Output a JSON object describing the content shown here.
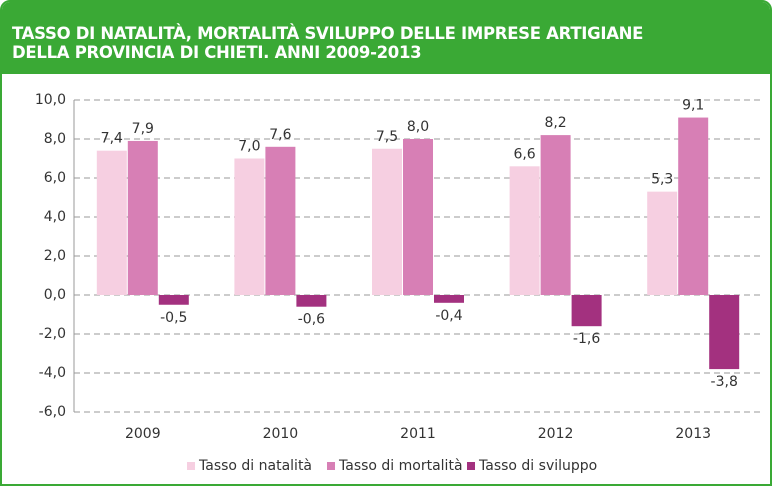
{
  "chart_data": {
    "type": "bar",
    "title": [
      "TASSO DI NATALITÀ, MORTALITÀ SVILUPPO DELLE IMPRESE ARTIGIANE",
      "DELLA PROVINCIA DI CHIETI. ANNI 2009-2013"
    ],
    "categories": [
      "2009",
      "2010",
      "2011",
      "2012",
      "2013"
    ],
    "series": [
      {
        "name": "Tasso di natalità",
        "color": "#f6cfe1",
        "values": [
          7.4,
          7.0,
          7.5,
          6.6,
          5.3
        ],
        "value_labels": [
          "7,4",
          "7,0",
          "7,5",
          "6,6",
          "5,3"
        ]
      },
      {
        "name": "Tasso di mortalità",
        "color": "#d77fb5",
        "values": [
          7.9,
          7.6,
          8.0,
          8.2,
          9.1
        ],
        "value_labels": [
          "7,9",
          "7,6",
          "8,0",
          "8,2",
          "9,1"
        ]
      },
      {
        "name": "Tasso di sviluppo",
        "color": "#a3317f",
        "values": [
          -0.5,
          -0.6,
          -0.4,
          -1.6,
          -3.8
        ],
        "value_labels": [
          "-0,5",
          "-0,6",
          "-0,4",
          "-1,6",
          "-3,8"
        ]
      }
    ],
    "ylim": [
      -6,
      10
    ],
    "yticks": [
      {
        "value": -6,
        "label": "-6,0"
      },
      {
        "value": -4,
        "label": "-4,0"
      },
      {
        "value": -2,
        "label": "-2,0"
      },
      {
        "value": 0,
        "label": "0,0"
      },
      {
        "value": 2,
        "label": "2,0"
      },
      {
        "value": 4,
        "label": "4,0"
      },
      {
        "value": 6,
        "label": "6,0"
      },
      {
        "value": 8,
        "label": "8,0"
      },
      {
        "value": 10,
        "label": "10,0"
      }
    ],
    "grid": true,
    "legend": "bottom"
  }
}
